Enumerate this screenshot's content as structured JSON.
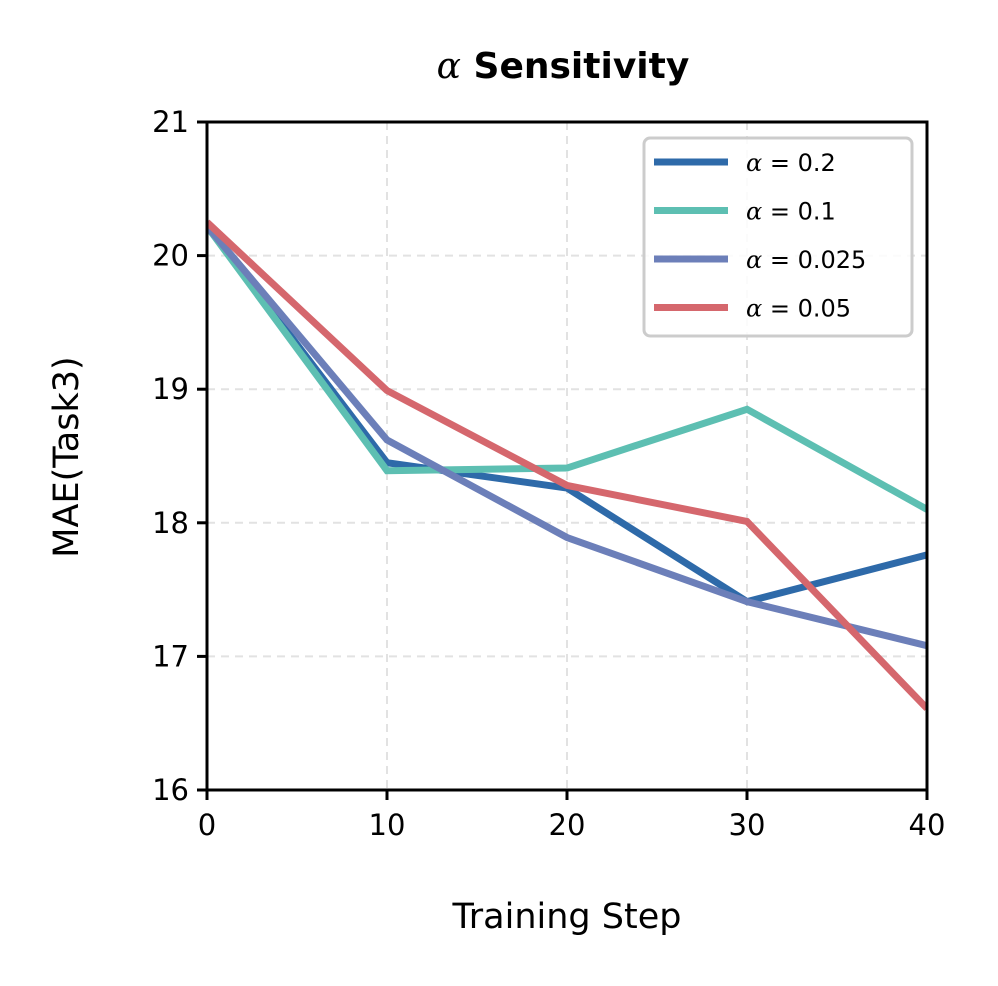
{
  "chart_data": {
    "type": "line",
    "title_symbol": "α",
    "title_text": "Sensitivity",
    "xlabel": "Training Step",
    "ylabel": "MAE(Task3)",
    "x": [
      0,
      10,
      20,
      30,
      40
    ],
    "xlim": [
      0,
      40
    ],
    "ylim": [
      16,
      21
    ],
    "xticks": [
      "0",
      "10",
      "20",
      "30",
      "40"
    ],
    "yticks": [
      "16",
      "17",
      "18",
      "19",
      "20",
      "21"
    ],
    "grid": true,
    "legend_position": "top-right",
    "series": [
      {
        "name": "α = 0.2",
        "symbol": "α",
        "value_text": " = 0.2",
        "color": "#2e6aa9",
        "values": [
          20.22,
          18.45,
          18.26,
          17.41,
          17.76
        ]
      },
      {
        "name": "α = 0.1",
        "symbol": "α",
        "value_text": " = 0.1",
        "color": "#5dbfb2",
        "values": [
          20.22,
          18.39,
          18.41,
          18.85,
          18.1
        ]
      },
      {
        "name": "α = 0.025",
        "symbol": "α",
        "value_text": " = 0.025",
        "color": "#6c7fb9",
        "values": [
          20.22,
          18.62,
          17.89,
          17.41,
          17.08
        ]
      },
      {
        "name": "α = 0.05",
        "symbol": "α",
        "value_text": " = 0.05",
        "color": "#d5676d",
        "values": [
          20.25,
          18.99,
          18.28,
          18.01,
          16.61
        ]
      }
    ]
  }
}
